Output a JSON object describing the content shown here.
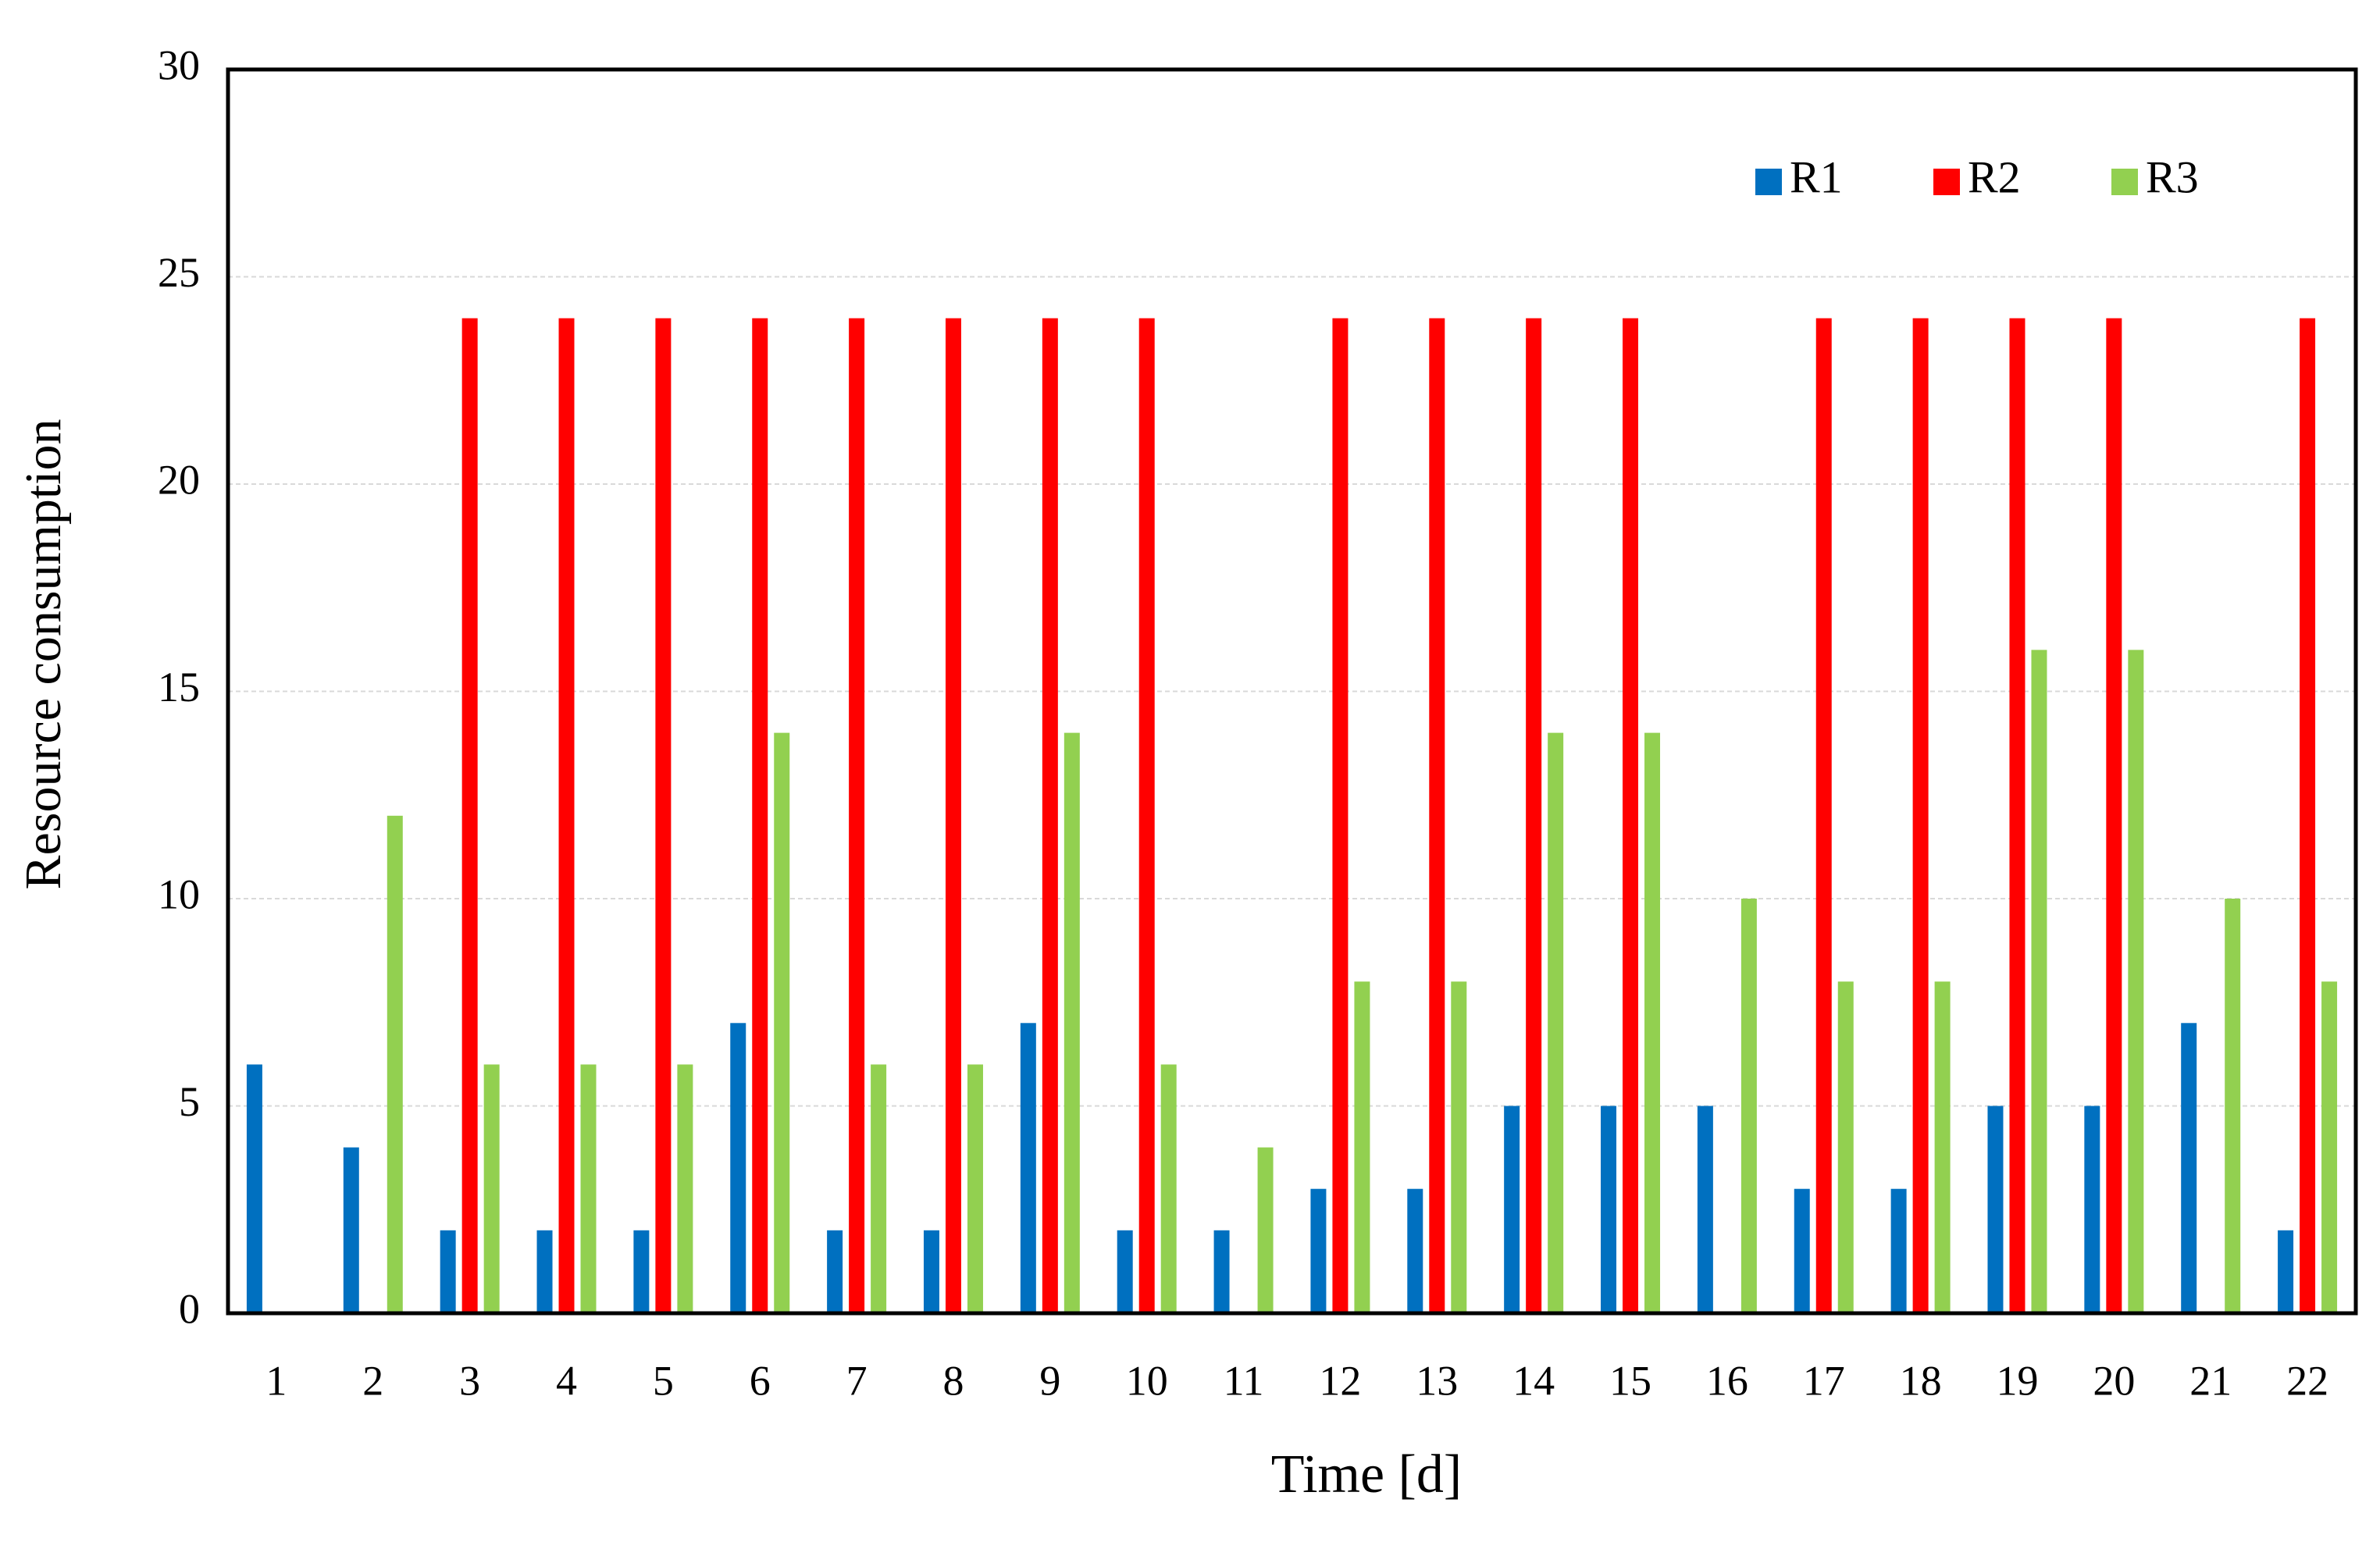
{
  "chart_data": {
    "type": "bar",
    "x_label": "Time [d]",
    "y_label": "Resource consumption",
    "categories": [
      "1",
      "2",
      "3",
      "4",
      "5",
      "6",
      "7",
      "8",
      "9",
      "10",
      "11",
      "12",
      "13",
      "14",
      "15",
      "16",
      "17",
      "18",
      "19",
      "20",
      "21",
      "22"
    ],
    "series": [
      {
        "name": "R1",
        "color": "#0070c0",
        "values": [
          6,
          4,
          2,
          2,
          2,
          7,
          2,
          2,
          7,
          2,
          2,
          3,
          3,
          5,
          5,
          5,
          3,
          3,
          5,
          5,
          7,
          2
        ]
      },
      {
        "name": "R2",
        "color": "#ff0000",
        "values": [
          0,
          0,
          24,
          24,
          24,
          24,
          24,
          24,
          24,
          24,
          0,
          24,
          24,
          24,
          24,
          0,
          24,
          24,
          24,
          24,
          0,
          24
        ]
      },
      {
        "name": "R3",
        "color": "#92d050",
        "values": [
          0,
          12,
          6,
          6,
          6,
          14,
          6,
          6,
          14,
          6,
          4,
          8,
          8,
          14,
          14,
          10,
          8,
          8,
          16,
          16,
          10,
          8
        ]
      }
    ],
    "ylim": [
      0,
      30
    ],
    "yticks": [
      0,
      5,
      10,
      15,
      20,
      25,
      30
    ],
    "grid": true,
    "legend": "top-right"
  }
}
